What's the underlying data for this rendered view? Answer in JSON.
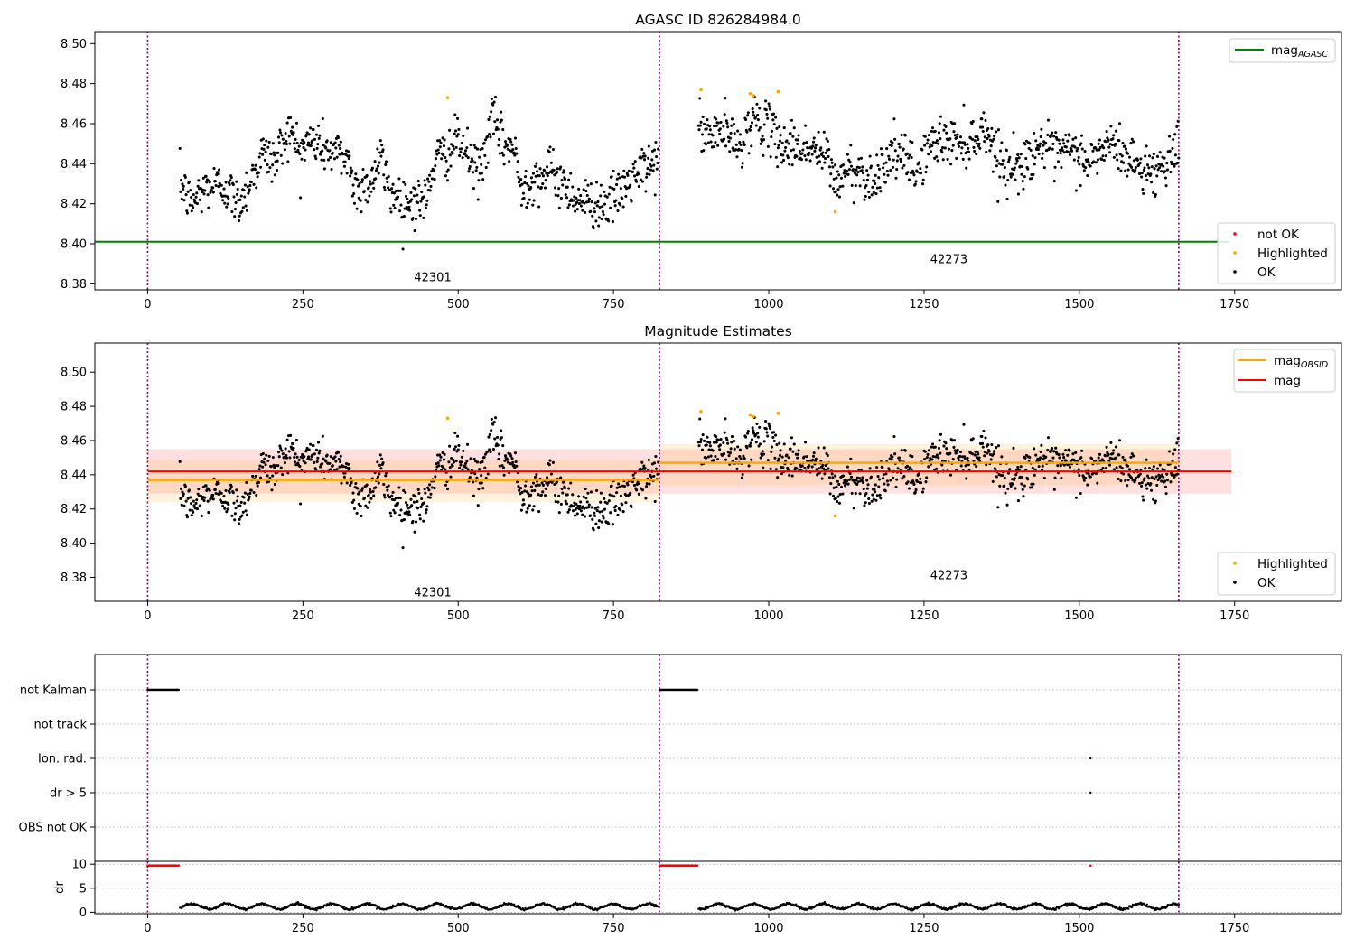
{
  "chart_data": [
    {
      "type": "scatter",
      "title": "AGASC ID 826284984.0",
      "xlim": [
        -85,
        1922
      ],
      "ylim": [
        8.377,
        8.506
      ],
      "xticks": [
        "0",
        "250",
        "500",
        "750",
        "1000",
        "1250",
        "1500",
        "1750"
      ],
      "xtick_values": [
        0,
        250,
        500,
        750,
        1000,
        1250,
        1500,
        1750
      ],
      "yticks": [
        "8.38",
        "8.40",
        "8.42",
        "8.44",
        "8.46",
        "8.48",
        "8.50"
      ],
      "ytick_values": [
        8.38,
        8.4,
        8.42,
        8.44,
        8.46,
        8.48,
        8.5
      ],
      "obs_boundaries": [
        0,
        824,
        1660
      ],
      "obsid_labels": [
        {
          "text": "42301",
          "x": 411,
          "y": 8.383
        },
        {
          "text": "42273",
          "x": 1242,
          "y": 8.392
        }
      ],
      "lines": [
        {
          "name": "mag_AGASC",
          "y": 8.401,
          "x_range": [
            -85,
            1922
          ],
          "color": "#008000"
        }
      ],
      "legend_upper": [
        {
          "label": "mag",
          "sub": "AGASC",
          "color": "#008000",
          "marker": "line"
        }
      ],
      "legend_lower": [
        {
          "label": "not OK",
          "color": "#ff0000",
          "marker": "dot"
        },
        {
          "label": "Highlighted",
          "color": "#ffa500",
          "marker": "dot"
        },
        {
          "label": "OK",
          "color": "#000000",
          "marker": "dot"
        }
      ],
      "highlighted_points": [
        [
          483,
          8.473
        ],
        [
          891,
          8.477
        ],
        [
          970,
          8.475
        ],
        [
          975,
          8.474
        ],
        [
          1015,
          8.476
        ],
        [
          1107,
          8.416
        ]
      ],
      "series_profile": {
        "name": "OK",
        "segments": [
          {
            "x_range": [
              52,
              822
            ],
            "profile": [
              [
                52,
                8.431
              ],
              [
                70,
                8.42
              ],
              [
                95,
                8.429
              ],
              [
                125,
                8.429
              ],
              [
                145,
                8.42
              ],
              [
                160,
                8.428
              ],
              [
                185,
                8.445
              ],
              [
                205,
                8.441
              ],
              [
                225,
                8.457
              ],
              [
                245,
                8.447
              ],
              [
                265,
                8.452
              ],
              [
                295,
                8.446
              ],
              [
                325,
                8.443
              ],
              [
                330,
                8.427
              ],
              [
                360,
                8.431
              ],
              [
                375,
                8.443
              ],
              [
                390,
                8.426
              ],
              [
                420,
                8.421
              ],
              [
                450,
                8.422
              ],
              [
                460,
                8.441
              ],
              [
                485,
                8.446
              ],
              [
                500,
                8.452
              ],
              [
                520,
                8.441
              ],
              [
                535,
                8.436
              ],
              [
                555,
                8.463
              ],
              [
                570,
                8.451
              ],
              [
                590,
                8.447
              ],
              [
                600,
                8.429
              ],
              [
                625,
                8.433
              ],
              [
                650,
                8.436
              ],
              [
                675,
                8.428
              ],
              [
                700,
                8.421
              ],
              [
                735,
                8.42
              ],
              [
                755,
                8.423
              ],
              [
                775,
                8.431
              ],
              [
                800,
                8.437
              ],
              [
                822,
                8.443
              ]
            ]
          },
          {
            "x_range": [
              887,
              1660
            ],
            "profile": [
              [
                887,
                8.458
              ],
              [
                905,
                8.453
              ],
              [
                925,
                8.458
              ],
              [
                950,
                8.448
              ],
              [
                975,
                8.463
              ],
              [
                1000,
                8.457
              ],
              [
                1025,
                8.449
              ],
              [
                1050,
                8.449
              ],
              [
                1075,
                8.446
              ],
              [
                1095,
                8.443
              ],
              [
                1108,
                8.43
              ],
              [
                1130,
                8.438
              ],
              [
                1150,
                8.435
              ],
              [
                1170,
                8.432
              ],
              [
                1195,
                8.445
              ],
              [
                1215,
                8.443
              ],
              [
                1240,
                8.436
              ],
              [
                1255,
                8.448
              ],
              [
                1280,
                8.452
              ],
              [
                1305,
                8.451
              ],
              [
                1330,
                8.452
              ],
              [
                1350,
                8.458
              ],
              [
                1365,
                8.446
              ],
              [
                1385,
                8.437
              ],
              [
                1410,
                8.44
              ],
              [
                1440,
                8.451
              ],
              [
                1460,
                8.443
              ],
              [
                1480,
                8.447
              ],
              [
                1505,
                8.443
              ],
              [
                1520,
                8.441
              ],
              [
                1545,
                8.45
              ],
              [
                1565,
                8.447
              ],
              [
                1585,
                8.441
              ],
              [
                1600,
                8.438
              ],
              [
                1625,
                8.436
              ],
              [
                1640,
                8.443
              ],
              [
                1660,
                8.447
              ]
            ]
          }
        ],
        "noise": 0.012
      }
    },
    {
      "type": "scatter",
      "title": "Magnitude Estimates",
      "xlim": [
        -85,
        1922
      ],
      "ylim": [
        8.366,
        8.517
      ],
      "xticks": [
        "0",
        "250",
        "500",
        "750",
        "1000",
        "1250",
        "1500",
        "1750"
      ],
      "xtick_values": [
        0,
        250,
        500,
        750,
        1000,
        1250,
        1500,
        1750
      ],
      "yticks": [
        "8.38",
        "8.40",
        "8.42",
        "8.44",
        "8.46",
        "8.48",
        "8.50"
      ],
      "ytick_values": [
        8.38,
        8.4,
        8.42,
        8.44,
        8.46,
        8.48,
        8.5
      ],
      "obs_boundaries": [
        0,
        824,
        1660
      ],
      "obsid_labels": [
        {
          "text": "42301",
          "x": 411,
          "y": 8.371
        },
        {
          "text": "42273",
          "x": 1242,
          "y": 8.381
        }
      ],
      "lines": [
        {
          "name": "mag",
          "y": 8.442,
          "x_range": [
            0,
            1745
          ],
          "color": "#ff0000",
          "band": [
            8.429,
            8.455
          ],
          "band_color": "rgba(255,0,0,0.12)"
        },
        {
          "name": "mag_OBSID_42301",
          "y": 8.437,
          "x_range": [
            0,
            824
          ],
          "color": "#ffa500",
          "band": [
            8.424,
            8.449
          ],
          "band_color": "rgba(255,165,0,0.13)"
        },
        {
          "name": "mag_OBSID_42273",
          "y": 8.447,
          "x_range": [
            824,
            1660
          ],
          "color": "#ffa500",
          "band": [
            8.434,
            8.458
          ],
          "band_color": "rgba(255,165,0,0.13)"
        }
      ],
      "legend_upper": [
        {
          "label": "mag",
          "sub": "OBSID",
          "color": "#ffa500",
          "marker": "line"
        },
        {
          "label": "mag",
          "sub": "",
          "color": "#ff0000",
          "marker": "line"
        }
      ],
      "legend_lower": [
        {
          "label": "Highlighted",
          "color": "#ffa500",
          "marker": "dot"
        },
        {
          "label": "OK",
          "color": "#000000",
          "marker": "dot"
        }
      ],
      "highlighted_points": [
        [
          483,
          8.473
        ],
        [
          891,
          8.477
        ],
        [
          970,
          8.475
        ],
        [
          975,
          8.474
        ],
        [
          1015,
          8.476
        ],
        [
          1107,
          8.416
        ]
      ],
      "series_profile": "same as chart 1"
    },
    {
      "type": "scatter",
      "title": "",
      "xlim": [
        -85,
        1922
      ],
      "xticks": [
        "0",
        "250",
        "500",
        "750",
        "1000",
        "1250",
        "1500",
        "1750"
      ],
      "xtick_values": [
        0,
        250,
        500,
        750,
        1000,
        1250,
        1500,
        1750
      ],
      "flag_rows": [
        "not Kalman",
        "not track",
        "Ion. rad.",
        "dr > 5",
        "OBS not OK"
      ],
      "flags": {
        "not Kalman": [
          [
            0,
            50
          ],
          [
            824,
            885
          ]
        ],
        "not track": [],
        "Ion. rad.": [
          [
            1518,
            1518
          ]
        ],
        "dr > 5": [
          [
            1518,
            1518
          ]
        ],
        "OBS not OK": []
      },
      "dr_panel": {
        "ylabel": "dr",
        "yticks": [
          "0",
          "5",
          "10"
        ],
        "ytick_values": [
          0,
          5,
          10
        ],
        "ylim": [
          -0.3,
          10.6
        ],
        "clipped_at_10": [
          [
            0,
            50
          ],
          [
            824,
            885
          ],
          [
            1518,
            1518
          ]
        ],
        "dr_segments": [
          [
            52,
            822
          ],
          [
            887,
            1660
          ]
        ],
        "dr_typical": 1.2
      },
      "obs_boundaries": [
        0,
        824,
        1660
      ]
    }
  ]
}
